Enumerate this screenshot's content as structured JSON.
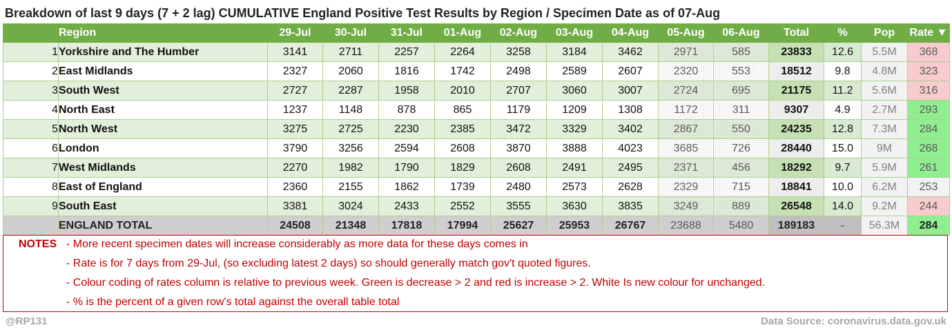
{
  "title": "Breakdown of last 9 days (7 + 2 lag) CUMULATIVE England Positive Test Results by Region / Specimen Date as of 07-Aug",
  "headers": {
    "region": "Region",
    "dates": [
      "29-Jul",
      "30-Jul",
      "31-Jul",
      "01-Aug",
      "02-Aug",
      "03-Aug",
      "04-Aug",
      "05-Aug",
      "06-Aug"
    ],
    "total": "Total",
    "pct": "%",
    "pop": "Pop",
    "rate": "Rate ▼"
  },
  "rows": [
    {
      "rank": "1",
      "region": "Yorkshire and The Humber",
      "values": [
        "3141",
        "2711",
        "2257",
        "2264",
        "3258",
        "3184",
        "3462",
        "2971",
        "585"
      ],
      "total": "23833",
      "pct": "12.6",
      "pop": "5.5M",
      "rate": "368",
      "rate_change": "up"
    },
    {
      "rank": "2",
      "region": "East Midlands",
      "values": [
        "2327",
        "2060",
        "1816",
        "1742",
        "2498",
        "2589",
        "2607",
        "2320",
        "553"
      ],
      "total": "18512",
      "pct": "9.8",
      "pop": "4.8M",
      "rate": "323",
      "rate_change": "up"
    },
    {
      "rank": "3",
      "region": "South West",
      "values": [
        "2727",
        "2287",
        "1958",
        "2010",
        "2707",
        "3060",
        "3007",
        "2724",
        "695"
      ],
      "total": "21175",
      "pct": "11.2",
      "pop": "5.6M",
      "rate": "316",
      "rate_change": "up"
    },
    {
      "rank": "4",
      "region": "North East",
      "values": [
        "1237",
        "1148",
        "878",
        "865",
        "1179",
        "1209",
        "1308",
        "1172",
        "311"
      ],
      "total": "9307",
      "pct": "4.9",
      "pop": "2.7M",
      "rate": "293",
      "rate_change": "down"
    },
    {
      "rank": "5",
      "region": "North West",
      "values": [
        "3275",
        "2725",
        "2230",
        "2385",
        "3472",
        "3329",
        "3402",
        "2867",
        "550"
      ],
      "total": "24235",
      "pct": "12.8",
      "pop": "7.3M",
      "rate": "284",
      "rate_change": "down"
    },
    {
      "rank": "6",
      "region": "London",
      "values": [
        "3790",
        "3256",
        "2594",
        "2608",
        "3870",
        "3888",
        "4023",
        "3685",
        "726"
      ],
      "total": "28440",
      "pct": "15.0",
      "pop": "9M",
      "rate": "268",
      "rate_change": "down"
    },
    {
      "rank": "7",
      "region": "West Midlands",
      "values": [
        "2270",
        "1982",
        "1790",
        "1829",
        "2608",
        "2491",
        "2495",
        "2371",
        "456"
      ],
      "total": "18292",
      "pct": "9.7",
      "pop": "5.9M",
      "rate": "261",
      "rate_change": "down"
    },
    {
      "rank": "8",
      "region": "East of England",
      "values": [
        "2360",
        "2155",
        "1862",
        "1739",
        "2480",
        "2573",
        "2628",
        "2329",
        "715"
      ],
      "total": "18841",
      "pct": "10.0",
      "pop": "6.2M",
      "rate": "253",
      "rate_change": "same"
    },
    {
      "rank": "9",
      "region": "South East",
      "values": [
        "3381",
        "3024",
        "2433",
        "2552",
        "3555",
        "3630",
        "3835",
        "3249",
        "889"
      ],
      "total": "26548",
      "pct": "14.0",
      "pop": "9.2M",
      "rate": "244",
      "rate_change": "up"
    }
  ],
  "totals": {
    "label": "ENGLAND TOTAL",
    "values": [
      "24508",
      "21348",
      "17818",
      "17994",
      "25627",
      "25953",
      "26767",
      "23688",
      "5480"
    ],
    "total": "189183",
    "pct": "-",
    "pop": "56.3M",
    "rate": "284"
  },
  "notes": {
    "label": "NOTES",
    "lines": [
      "- More recent specimen dates will increase considerably as more data for these days comes in",
      "- Rate is for 7 days from 29-Jul, (so excluding latest 2 days) so should generally match gov't quoted figures.",
      "- Colour coding of rates column is relative to previous week. Green is decrease > 2 and red is increase > 2. White Is new colour for unchanged.",
      "- % is the percent of a given row's total against the overall table total"
    ]
  },
  "footer": {
    "author": "@RP131",
    "source": "Data Source: coronavirus.data.gov.uk"
  },
  "colors": {
    "header_bg": "#70ad47",
    "row_alt_bg": "#e2efda",
    "rate_increase": "#f8cbcc",
    "rate_decrease": "#90ee90",
    "notes_text": "#c00000"
  }
}
